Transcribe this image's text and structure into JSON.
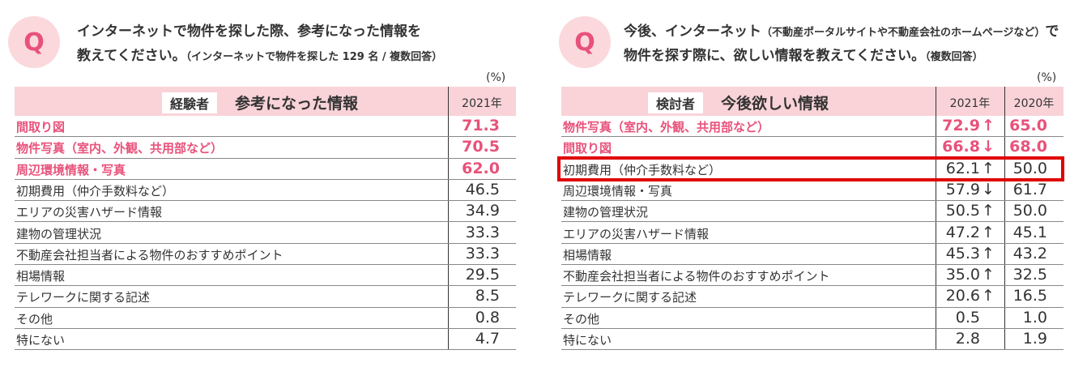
{
  "left": {
    "icon": "Q",
    "question": [
      [
        {
          "text": "インターネットで物件を探した際、参考になった情報を"
        }
      ],
      [
        {
          "text": "教えてください。"
        },
        {
          "text": "（インターネットで物件を探した 129 名 / 複数回答）",
          "small": true
        }
      ]
    ],
    "unit": "(%)",
    "table": {
      "badge": "経験者",
      "title": "参考になった情報",
      "columns": [
        "2021年"
      ],
      "rows": [
        {
          "label": "間取り図",
          "values": [
            "71.3"
          ],
          "highlight": true
        },
        {
          "label": "物件写真（室内、外観、共用部など）",
          "values": [
            "70.5"
          ],
          "highlight": true
        },
        {
          "label": "周辺環境情報・写真",
          "values": [
            "62.0"
          ],
          "highlight": true
        },
        {
          "label": "初期費用（仲介手数料など）",
          "values": [
            "46.5"
          ]
        },
        {
          "label": "エリアの災害ハザード情報",
          "values": [
            "34.9"
          ]
        },
        {
          "label": "建物の管理状況",
          "values": [
            "33.3"
          ]
        },
        {
          "label": "不動産会社担当者による物件のおすすめポイント",
          "values": [
            "33.3"
          ]
        },
        {
          "label": "相場情報",
          "values": [
            "29.5"
          ]
        },
        {
          "label": "テレワークに関する記述",
          "values": [
            "8.5"
          ]
        },
        {
          "label": "その他",
          "values": [
            "0.8"
          ]
        },
        {
          "label": "特にない",
          "values": [
            "4.7"
          ]
        }
      ]
    }
  },
  "right": {
    "icon": "Q",
    "question": [
      [
        {
          "text": "今後、インターネット"
        },
        {
          "text": "（不動産ポータルサイトや不動産会社のホームページなど）",
          "small": true
        },
        {
          "text": "で"
        }
      ],
      [
        {
          "text": "物件を探す際に、欲しい情報を教えてください。"
        },
        {
          "text": "（複数回答）",
          "small": true
        }
      ]
    ],
    "unit": "(%)",
    "table": {
      "badge": "検討者",
      "title": "今後欲しい情報",
      "columns": [
        "2021年",
        "2020年"
      ],
      "rows": [
        {
          "label": "物件写真（室内、外観、共用部など）",
          "values": [
            "72.9",
            "65.0"
          ],
          "trend": "↑",
          "highlight": true
        },
        {
          "label": "間取り図",
          "values": [
            "66.8",
            "68.0"
          ],
          "trend": "↓",
          "highlight": true
        },
        {
          "label": "初期費用（仲介手数料など）",
          "values": [
            "62.1",
            "50.0"
          ],
          "trend": "↑",
          "boxed": true
        },
        {
          "label": "周辺環境情報・写真",
          "values": [
            "57.9",
            "61.7"
          ],
          "trend": "↓"
        },
        {
          "label": "建物の管理状況",
          "values": [
            "50.5",
            "50.0"
          ],
          "trend": "↑"
        },
        {
          "label": "エリアの災害ハザード情報",
          "values": [
            "47.2",
            "45.1"
          ],
          "trend": "↑"
        },
        {
          "label": "相場情報",
          "values": [
            "45.3",
            "43.2"
          ],
          "trend": "↑"
        },
        {
          "label": "不動産会社担当者による物件のおすすめポイント",
          "values": [
            "35.0",
            "32.5"
          ],
          "trend": "↑"
        },
        {
          "label": "テレワークに関する記述",
          "values": [
            "20.6",
            "16.5"
          ],
          "trend": "↑"
        },
        {
          "label": "その他",
          "values": [
            "0.5",
            "1.0"
          ]
        },
        {
          "label": "特にない",
          "values": [
            "2.8",
            "1.9"
          ]
        }
      ]
    }
  }
}
